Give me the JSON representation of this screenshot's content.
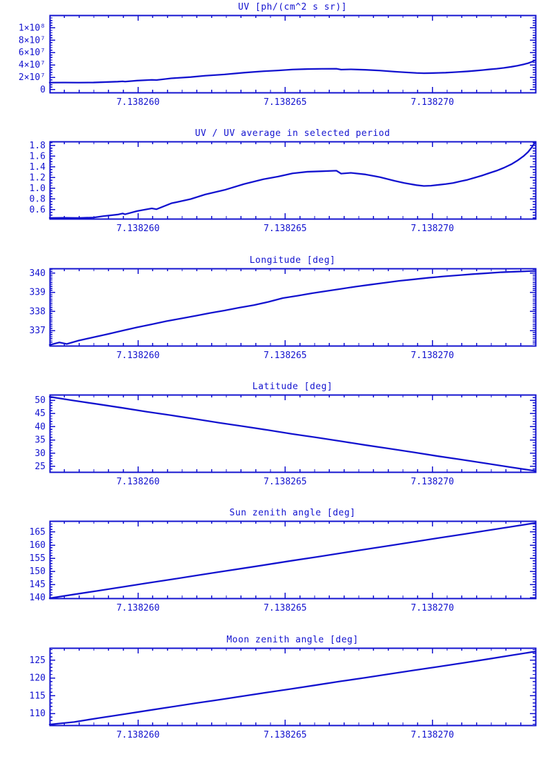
{
  "page": {
    "background": "#ffffff",
    "plot_color": "#1212cf"
  },
  "x_axis": {
    "xlim": [
      7.138257,
      7.1382735
    ],
    "tick_values": [
      7.13826,
      7.138265,
      7.13827
    ],
    "tick_labels": [
      "7.138260",
      "7.138265",
      "7.138270"
    ],
    "minor_step": 5e-07
  },
  "chart_data": [
    {
      "type": "line",
      "title": "UV [ph/(cm^2 s sr)]",
      "ylim": [
        -4500000,
        120500000
      ],
      "yticks": [
        0,
        20000000,
        40000000,
        60000000,
        80000000,
        100000000
      ],
      "ytick_labels": [
        "0",
        "2×10⁷",
        "4×10⁷",
        "6×10⁷",
        "8×10⁷",
        "1×10⁸"
      ],
      "yminor_step": 4000000,
      "x": [
        7.138257,
        7.1382575,
        7.13825799,
        7.13825849,
        7.13825882,
        7.13825931,
        7.13825948,
        7.13825956,
        7.13825997,
        7.13826047,
        7.13826063,
        7.13826113,
        7.13826179,
        7.13826228,
        7.13826294,
        7.1382636,
        7.13826426,
        7.13826476,
        7.13826525,
        7.13826575,
        7.13826624,
        7.13826674,
        7.1382669,
        7.13826723,
        7.13826773,
        7.13826822,
        7.13826872,
        7.13826905,
        7.13826946,
        7.13826971,
        7.13826995,
        7.1382702,
        7.13827045,
        7.1382707,
        7.13827094,
        7.13827119,
        7.13827144,
        7.13827169,
        7.13827193,
        7.13827218,
        7.13827243,
        7.13827268,
        7.13827289,
        7.13827309,
        7.13827325,
        7.13827338,
        7.1382735
      ],
      "y": [
        11400000,
        11500000,
        11400000,
        11600000,
        12200000,
        13000000,
        13500000,
        13100000,
        14700000,
        15900000,
        15600000,
        18400000,
        20400000,
        22600000,
        24700000,
        27500000,
        29800000,
        31100000,
        32600000,
        33400000,
        33700000,
        33900000,
        32500000,
        32900000,
        32100000,
        30900000,
        29100000,
        28100000,
        27000000,
        26600000,
        26800000,
        27200000,
        27500000,
        28100000,
        28800000,
        29600000,
        30600000,
        31600000,
        32800000,
        33900000,
        35300000,
        37000000,
        38800000,
        40800000,
        42800000,
        45100000,
        47700000
      ]
    },
    {
      "type": "line",
      "title": "UV / UV average in selected period",
      "ylim": [
        0.432,
        1.877
      ],
      "yticks": [
        0.6,
        0.8,
        1.0,
        1.2,
        1.4,
        1.6,
        1.8
      ],
      "ytick_labels": [
        "0.6",
        "0.8",
        "1.0",
        "1.2",
        "1.4",
        "1.6",
        "1.8"
      ],
      "yminor_step": 0.05,
      "x": [
        7.138257,
        7.1382575,
        7.13825799,
        7.13825849,
        7.13825882,
        7.13825931,
        7.13825948,
        7.13825956,
        7.13825997,
        7.13826047,
        7.13826063,
        7.13826113,
        7.13826179,
        7.13826228,
        7.13826294,
        7.1382636,
        7.13826426,
        7.13826476,
        7.13826525,
        7.13826575,
        7.13826624,
        7.13826674,
        7.1382669,
        7.13826723,
        7.13826773,
        7.13826822,
        7.13826872,
        7.13826905,
        7.13826946,
        7.13826971,
        7.13826995,
        7.1382702,
        7.13827045,
        7.1382707,
        7.13827094,
        7.13827119,
        7.13827144,
        7.13827169,
        7.13827193,
        7.13827218,
        7.13827243,
        7.13827268,
        7.13827289,
        7.13827309,
        7.13827325,
        7.13827338,
        7.1382735
      ],
      "y": [
        0.447,
        0.45,
        0.447,
        0.455,
        0.48,
        0.51,
        0.53,
        0.515,
        0.575,
        0.625,
        0.61,
        0.72,
        0.8,
        0.885,
        0.97,
        1.08,
        1.17,
        1.22,
        1.28,
        1.31,
        1.32,
        1.33,
        1.275,
        1.29,
        1.26,
        1.21,
        1.14,
        1.1,
        1.06,
        1.045,
        1.05,
        1.065,
        1.08,
        1.1,
        1.13,
        1.16,
        1.2,
        1.24,
        1.285,
        1.33,
        1.385,
        1.45,
        1.52,
        1.6,
        1.68,
        1.77,
        1.87
      ]
    },
    {
      "type": "line",
      "title": "Longitude [deg]",
      "ylim": [
        336.21,
        340.25
      ],
      "yticks": [
        337,
        338,
        339,
        340
      ],
      "ytick_labels": [
        "337",
        "338",
        "339",
        "340"
      ],
      "yminor_step": 0.1,
      "x": [
        7.138257,
        7.13825733,
        7.13825758,
        7.13825799,
        7.13825849,
        7.13825898,
        7.13825948,
        7.13825997,
        7.13826047,
        7.13826096,
        7.13826146,
        7.13826195,
        7.13826245,
        7.13826294,
        7.13826344,
        7.13826393,
        7.13826443,
        7.13826492,
        7.13826542,
        7.13826591,
        7.13826641,
        7.1382669,
        7.1382674,
        7.13826789,
        7.13826839,
        7.13826888,
        7.13826938,
        7.13826987,
        7.13827037,
        7.13827086,
        7.13827136,
        7.13827185,
        7.13827235,
        7.13827284,
        7.1382735
      ],
      "y": [
        336.25,
        336.38,
        336.3,
        336.48,
        336.65,
        336.82,
        337.0,
        337.17,
        337.33,
        337.49,
        337.63,
        337.77,
        337.92,
        338.05,
        338.2,
        338.33,
        338.5,
        338.7,
        338.82,
        338.95,
        339.07,
        339.18,
        339.3,
        339.4,
        339.5,
        339.6,
        339.68,
        339.76,
        339.83,
        339.89,
        339.95,
        340.0,
        340.05,
        340.08,
        340.12
      ]
    },
    {
      "type": "line",
      "title": "Latitude [deg]",
      "ylim": [
        22.9,
        52.1
      ],
      "yticks": [
        25,
        30,
        35,
        40,
        45,
        50
      ],
      "ytick_labels": [
        "25",
        "30",
        "35",
        "40",
        "45",
        "50"
      ],
      "yminor_step": 1,
      "x": [
        7.138257,
        7.13825783,
        7.13825865,
        7.13825948,
        7.1382603,
        7.13826113,
        7.13826195,
        7.13826278,
        7.1382636,
        7.13826443,
        7.13826525,
        7.13826608,
        7.1382669,
        7.13826773,
        7.13826855,
        7.13826938,
        7.1382702,
        7.13827103,
        7.13827185,
        7.13827268,
        7.1382735
      ],
      "y": [
        51.3,
        49.85,
        48.5,
        47.1,
        45.65,
        44.3,
        42.9,
        41.45,
        40.1,
        38.7,
        37.25,
        35.9,
        34.5,
        33.05,
        31.7,
        30.3,
        28.85,
        27.5,
        26.1,
        24.65,
        23.3
      ]
    },
    {
      "type": "line",
      "title": "Sun zenith angle [deg]",
      "ylim": [
        139.74,
        169.21
      ],
      "yticks": [
        140,
        145,
        150,
        155,
        160,
        165
      ],
      "ytick_labels": [
        "140",
        "145",
        "150",
        "155",
        "160",
        "165"
      ],
      "yminor_step": 1,
      "x": [
        7.138257,
        7.13825783,
        7.13825865,
        7.13825948,
        7.1382603,
        7.13826113,
        7.13826195,
        7.13826278,
        7.1382636,
        7.13826443,
        7.13826525,
        7.13826608,
        7.1382669,
        7.13826773,
        7.13826855,
        7.13826938,
        7.1382702,
        7.13827103,
        7.13827185,
        7.13827268,
        7.1382735
      ],
      "y": [
        139.75,
        141.2,
        142.6,
        144.05,
        145.5,
        146.9,
        148.35,
        149.8,
        151.2,
        152.65,
        154.1,
        155.5,
        156.95,
        158.4,
        159.8,
        161.25,
        162.7,
        164.1,
        165.55,
        167.0,
        168.45
      ]
    },
    {
      "type": "line",
      "title": "Moon zenith angle [deg]",
      "ylim": [
        106.7,
        128.5
      ],
      "yticks": [
        110,
        115,
        120,
        125
      ],
      "ytick_labels": [
        "110",
        "115",
        "120",
        "125"
      ],
      "yminor_step": 1,
      "x": [
        7.138257,
        7.13825783,
        7.13825865,
        7.13825948,
        7.1382603,
        7.13826113,
        7.13826195,
        7.13826278,
        7.1382636,
        7.13826443,
        7.13826525,
        7.13826608,
        7.1382669,
        7.13826773,
        7.13826855,
        7.13826938,
        7.1382702,
        7.13827103,
        7.13827185,
        7.13827268,
        7.1382735
      ],
      "y": [
        106.9,
        107.6,
        108.7,
        109.75,
        110.8,
        111.85,
        112.9,
        113.9,
        114.95,
        116.0,
        117.0,
        118.05,
        119.1,
        120.1,
        121.15,
        122.2,
        123.2,
        124.25,
        125.3,
        126.4,
        127.5
      ]
    }
  ]
}
